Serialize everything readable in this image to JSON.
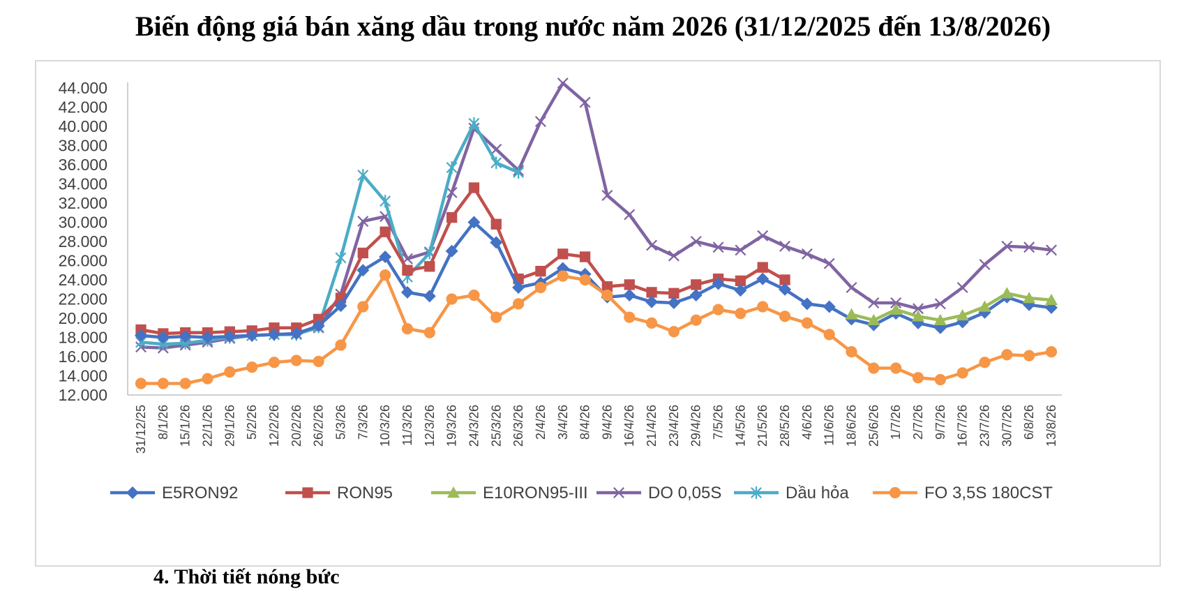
{
  "title": "Biến động giá bán xăng dầu trong nước năm 2026 (31/12/2025 đến 13/8/2026)",
  "footer_fragment": "4. Thời tiết nóng bức",
  "chart_data": {
    "type": "line",
    "title": "Biến động giá bán xăng dầu trong nước năm 2026 (31/12/2025 đến 13/8/2026)",
    "xlabel": "",
    "ylabel": "",
    "ylim": [
      12000,
      44000
    ],
    "ytick_labels": [
      "12.000",
      "14.000",
      "16.000",
      "18.000",
      "20.000",
      "22.000",
      "24.000",
      "26.000",
      "28.000",
      "30.000",
      "32.000",
      "34.000",
      "36.000",
      "38.000",
      "40.000",
      "42.000",
      "44.000"
    ],
    "grid": false,
    "legend_position": "bottom",
    "categories": [
      "31/12/25",
      "8/1/26",
      "15/1/26",
      "22/1/26",
      "29/1/26",
      "5/2/26",
      "12/2/26",
      "20/2/26",
      "26/2/26",
      "5/3/26",
      "7/3/26",
      "10/3/26",
      "11/3/26",
      "12/3/26",
      "19/3/26",
      "24/3/26",
      "25/3/26",
      "26/3/26",
      "2/4/26",
      "3/4/26",
      "8/4/26",
      "9/4/26",
      "16/4/26",
      "21/4/26",
      "23/4/26",
      "29/4/26",
      "7/5/26",
      "14/5/26",
      "21/5/26",
      "28/5/26",
      "4/6/26",
      "11/6/26",
      "18/6/26",
      "25/6/26",
      "1/7/26",
      "2/7/26",
      "9/7/26",
      "16/7/26",
      "23/7/26",
      "30/7/26",
      "6/8/26",
      "13/8/26"
    ],
    "series": [
      {
        "name": "E5RON92",
        "color": "#4472c4",
        "marker": "diamond",
        "values": [
          18200,
          18000,
          18100,
          18000,
          18100,
          18200,
          18300,
          18400,
          19200,
          21300,
          25000,
          26400,
          22700,
          22300,
          27000,
          30000,
          27900,
          23200,
          23700,
          25200,
          24600,
          22200,
          22400,
          21700,
          21600,
          22400,
          23600,
          22900,
          24100,
          23000,
          21500,
          21200,
          19900,
          19300,
          20500,
          19500,
          19000,
          19600,
          20600,
          22200,
          21400,
          21100
        ]
      },
      {
        "name": "RON95",
        "color": "#c0504d",
        "marker": "square",
        "values": [
          18800,
          18400,
          18500,
          18500,
          18600,
          18700,
          19000,
          19000,
          19900,
          22100,
          26800,
          29000,
          25000,
          25400,
          30500,
          33600,
          29800,
          24100,
          24900,
          26700,
          26400,
          23300,
          23500,
          22700,
          22600,
          23500,
          24100,
          23900,
          25300,
          24000,
          null,
          null,
          null,
          null,
          null,
          null,
          null,
          null,
          null,
          null,
          null,
          null
        ]
      },
      {
        "name": "E10RON95-III",
        "color": "#9bbb59",
        "marker": "triangle",
        "values": [
          null,
          null,
          null,
          null,
          null,
          null,
          null,
          null,
          null,
          null,
          null,
          null,
          null,
          null,
          null,
          null,
          null,
          null,
          null,
          null,
          null,
          null,
          null,
          null,
          null,
          null,
          null,
          null,
          null,
          null,
          null,
          null,
          20400,
          19800,
          20900,
          20200,
          19800,
          20300,
          21200,
          22600,
          22100,
          21900
        ]
      },
      {
        "name": "DO 0,05S",
        "color": "#8064a2",
        "marker": "x",
        "values": [
          17000,
          16900,
          17200,
          17500,
          17900,
          18200,
          18300,
          18400,
          19000,
          22500,
          30100,
          30600,
          26200,
          26900,
          33100,
          39800,
          37600,
          35400,
          40500,
          44500,
          42500,
          32800,
          30800,
          27600,
          26500,
          28000,
          27400,
          27100,
          28600,
          27500,
          26700,
          25700,
          23200,
          21600,
          21600,
          21000,
          21500,
          23200,
          25600,
          27500,
          27400,
          27100
        ]
      },
      {
        "name": "Dầu hỏa",
        "color": "#4bacc6",
        "marker": "star",
        "values": [
          17500,
          17300,
          17400,
          17700,
          18000,
          18200,
          18300,
          18300,
          19100,
          26300,
          34900,
          32200,
          24300,
          26800,
          35700,
          40300,
          36200,
          35200,
          null,
          null,
          null,
          null,
          null,
          null,
          null,
          null,
          null,
          null,
          null,
          null,
          null,
          null,
          null,
          null,
          null,
          null,
          null,
          null,
          null,
          null,
          null,
          null
        ]
      },
      {
        "name": "FO 3,5S 180CST",
        "color": "#f79646",
        "marker": "circle",
        "values": [
          13200,
          13200,
          13200,
          13700,
          14400,
          14900,
          15400,
          15600,
          15500,
          17200,
          21200,
          24500,
          18900,
          18500,
          22000,
          22400,
          20100,
          21500,
          23200,
          24400,
          24000,
          22400,
          20100,
          19500,
          18600,
          19800,
          20900,
          20500,
          21200,
          20200,
          19500,
          18300,
          16500,
          14800,
          14800,
          13800,
          13600,
          14300,
          15400,
          16200,
          16100,
          16500
        ]
      }
    ]
  }
}
